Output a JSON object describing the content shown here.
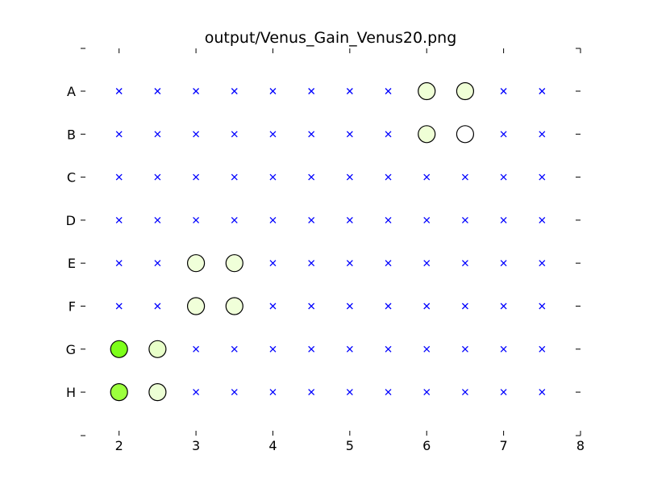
{
  "chart_data": {
    "type": "scatter",
    "title": "output/Venus_Gain_Venus20.png",
    "xlabel": "",
    "ylabel": "",
    "xlim": [
      1.5,
      8
    ],
    "x_ticks": [
      2,
      3,
      4,
      5,
      6,
      7,
      8
    ],
    "x_tick_labels": [
      "2",
      "3",
      "4",
      "5",
      "6",
      "7",
      "8"
    ],
    "rows": [
      "A",
      "B",
      "C",
      "D",
      "E",
      "F",
      "G",
      "H"
    ],
    "grid_columns": [
      2,
      2.5,
      3,
      3.5,
      4,
      4.5,
      5,
      5.5,
      6,
      6.5,
      7,
      7.5
    ],
    "grid": false,
    "marker_color": "#0000ff",
    "circles": [
      {
        "row": "A",
        "x": 6,
        "color": "#efffd6"
      },
      {
        "row": "A",
        "x": 6.5,
        "color": "#efffd6"
      },
      {
        "row": "B",
        "x": 6,
        "color": "#efffd6"
      },
      {
        "row": "B",
        "x": 6.5,
        "color": "#ffffff"
      },
      {
        "row": "E",
        "x": 3,
        "color": "#f0ffd9"
      },
      {
        "row": "E",
        "x": 3.5,
        "color": "#f0ffd9"
      },
      {
        "row": "F",
        "x": 3,
        "color": "#f0ffd9"
      },
      {
        "row": "F",
        "x": 3.5,
        "color": "#f0ffd9"
      },
      {
        "row": "G",
        "x": 2,
        "color": "#7dff1a"
      },
      {
        "row": "G",
        "x": 2.5,
        "color": "#e8ffc9"
      },
      {
        "row": "H",
        "x": 2,
        "color": "#9cff3d"
      },
      {
        "row": "H",
        "x": 2.5,
        "color": "#ecffd4"
      }
    ]
  }
}
